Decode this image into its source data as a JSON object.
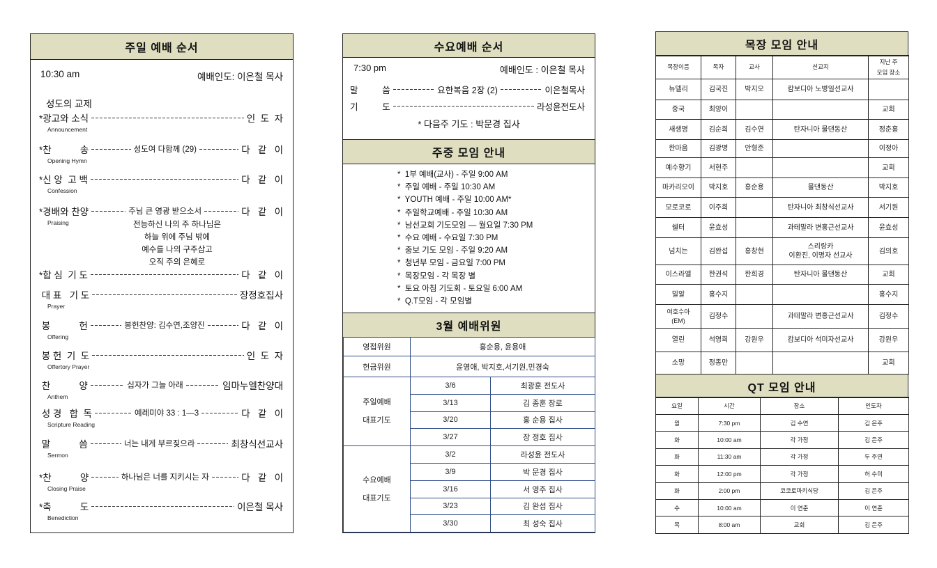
{
  "sunday": {
    "title": "주일 예배 순서",
    "time": "10:30 am",
    "leader": "예배인도: 이은철 목사",
    "fellowship": "성도의 교제",
    "items": [
      {
        "label": "*광고와 소식",
        "center": "",
        "right": "인  도  자",
        "sub": "Announcement"
      },
      {
        "label": "*찬           송",
        "center": "성도여 다함께 (29)",
        "right": "다   같   이",
        "sub": "Opening Hymn"
      },
      {
        "label": "*신 앙  고 백",
        "center": "",
        "right": "다   같   이",
        "sub": "Confession"
      },
      {
        "label": "*경배와 찬양",
        "center": "주님 큰 영광 받으소서",
        "right": "다   같   이",
        "sub": "Praising"
      },
      {
        "label": "*합 심  기 도",
        "center": "",
        "right": "다   같   이",
        "sub": ""
      },
      {
        "label": " 대 표   기 도",
        "center": "",
        "right": "장정호집사",
        "sub": "Prayer"
      },
      {
        "label": " 봉           헌",
        "center": "봉헌찬양: 김수연,조양진",
        "right": "다   같   이",
        "sub": "Offering"
      },
      {
        "label": " 봉 헌  기  도",
        "center": "",
        "right": "인  도  자",
        "sub": "Offertory Prayer"
      },
      {
        "label": " 찬           양",
        "center": "십자가 그늘 아래",
        "right": "임마누엘찬양대",
        "sub": "Anthem"
      },
      {
        "label": " 성 경   합  독",
        "center": "예레미야 33 : 1—3",
        "right": "다   같   이",
        "sub": "Scripture  Reading"
      },
      {
        "label": " 말           씀",
        "center": "너는 내게 부르짖으라",
        "right": "최창식선교사",
        "sub": "Sermon"
      },
      {
        "label": "*찬           양",
        "center": "하나님은 너를 지키시는 자",
        "right": "다   같   이",
        "sub": "Closing Praise"
      },
      {
        "label": "*축           도",
        "center": "",
        "right": "이은철 목사",
        "sub": "Benediction"
      }
    ],
    "lyrics": [
      "전능하신 나의 주 하나님은",
      "하늘 위에 주님 밖에",
      "예수를 나의 구주삼고",
      "오직 주의 은혜로"
    ]
  },
  "wednesday": {
    "title": "수요예배 순서",
    "time": "7:30 pm",
    "leader": "예배인도 : 이은철 목사",
    "items": [
      {
        "label": "말          씀",
        "center": "요한복음 2장 (2)",
        "right": "이은철목사"
      },
      {
        "label": "기          도",
        "center": "",
        "right": "라성윤전도사"
      }
    ],
    "note": "* 다음주 기도 : 박문경 집사"
  },
  "weekly": {
    "title": "주중 모임 안내",
    "items": [
      "*  1부 예배(교사) - 주일 9:00 AM",
      "*  주일 예배 - 주일 10:30 AM",
      "*  YOUTH 예배 - 주일 10:00 AM*",
      "*  주일학교예배 - 주일 10:30 AM",
      "*  남선교회 기도모임 — 월요일 7:30 PM",
      "*  수요 예배 - 수요일 7:30 PM",
      "*  중보 기도 모임 - 주일 9:20 AM",
      "*  청년부 모임 - 금요일 7:00 PM",
      "*  목장모임 - 각 목장 별",
      "*  토요 아침 기도회 - 토요일 6:00 AM",
      "*  Q.T모임 - 각 모임별"
    ]
  },
  "committee": {
    "title": "3월 예배위원",
    "greeters": {
      "label": "영접위원",
      "value": "홍순용,  윤용애"
    },
    "offering": {
      "label": "헌금위원",
      "value": "윤영애, 박지호,서기원,민경숙"
    },
    "sunday": {
      "label1": "주일예배",
      "label2": "대표기도",
      "rows": [
        [
          "3/6",
          "최광훈 전도사"
        ],
        [
          "3/13",
          "김 종훈 장로"
        ],
        [
          "3/20",
          "홍 순용 집사"
        ],
        [
          "3/27",
          "장 정호 집사"
        ]
      ]
    },
    "wednesday": {
      "label1": "수요예배",
      "label2": "대표기도",
      "rows": [
        [
          "3/2",
          "라성윤 전도사"
        ],
        [
          "3/9",
          "박 문경 집사"
        ],
        [
          "3/16",
          "서 영주 집사"
        ],
        [
          "3/23",
          "김 완섭 집사"
        ],
        [
          "3/30",
          "최 성숙 집사"
        ]
      ]
    }
  },
  "mokjang": {
    "title": "목장 모임 안내",
    "headers": [
      "목장이름",
      "목자",
      "교사",
      "선교지",
      "지난 주\n모임 장소"
    ],
    "rows": [
      [
        "뉴델리",
        "김국진",
        "박지오",
        "캄보디아 노병일선교사",
        ""
      ],
      [
        "중국",
        "최양이",
        "",
        "",
        "교회"
      ],
      [
        "새생명",
        "김순희",
        "김수연",
        "탄자니아  물댄동산",
        "정춘홍"
      ],
      [
        "한마음",
        "김광명",
        "안형준",
        "",
        "이정아"
      ],
      [
        "예수향기",
        "서현주",
        "",
        "",
        "교회"
      ],
      [
        "마카리오이",
        "박지호",
        "홍순용",
        "물댄동산",
        "박지호"
      ],
      [
        "모로코로",
        "이주희",
        "",
        "탄자니아 최창식선교사",
        "서기원"
      ],
      [
        "쉘터",
        "윤효성",
        "",
        "과테말라 변홍근선교사",
        "윤효성"
      ],
      [
        "넘치는",
        "김완섭",
        "홍창현",
        "스리랑카\n이환진, 이명자 선교사",
        "김의호"
      ],
      [
        "이스라엘",
        "한권석",
        "한희경",
        "탄자니아 물댄동산",
        "교회"
      ],
      [
        "밀알",
        "홍수지",
        "",
        "",
        "홍수지"
      ],
      [
        "여호수아\n(EM)",
        "김정수",
        "",
        "과테말라 변홍근선교사",
        "김정수"
      ],
      [
        "열린",
        "석영희",
        "강원우",
        "캄보디아 석미자선교사",
        "강원우"
      ],
      [
        "소망",
        "정종만",
        "",
        "",
        "교회"
      ]
    ]
  },
  "qt": {
    "title": "QT 모임 안내",
    "headers": [
      "요일",
      "시간",
      "장소",
      "인도자"
    ],
    "rows": [
      [
        "월",
        "7:30 pm",
        "김 수연",
        "김 은주"
      ],
      [
        "화",
        "10:00 am",
        "각 가정",
        "김 은주"
      ],
      [
        "화",
        "11:30 am",
        "각 가정",
        "두 주연"
      ],
      [
        "화",
        "12:00 pm",
        "각 가정",
        "허 수미"
      ],
      [
        "화",
        "2:00 pm",
        "코코로마키식당",
        "김 은주"
      ],
      [
        "수",
        "10:00 am",
        "이 연춘",
        "이 연춘"
      ],
      [
        "목",
        "8:00 am",
        "교회",
        "김 은주"
      ]
    ]
  },
  "colors": {
    "header_bg": "#dfdec0",
    "table_border": "#2d4b86"
  }
}
